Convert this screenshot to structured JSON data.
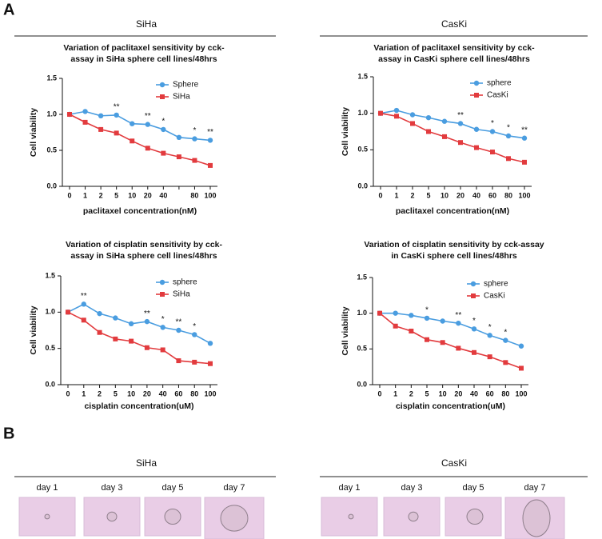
{
  "panels": {
    "a": {
      "label": "A",
      "groups": [
        "SiHa",
        "CasKi"
      ]
    },
    "b": {
      "label": "B",
      "groups": [
        "SiHa",
        "CasKi"
      ],
      "days": [
        "day 1",
        "day 3",
        "day 5",
        "day 7"
      ]
    }
  },
  "chart_data": [
    {
      "type": "line",
      "title_lines": [
        "Variation of paclitaxel sensitivity by cck-",
        "assay in SiHa sphere cell lines/48hrs"
      ],
      "xlabel": "paclitaxel concentration(nM)",
      "ylabel": "Cell viability",
      "categories": [
        "0",
        "1",
        "2",
        "5",
        "10",
        "20",
        "40",
        null,
        "80",
        "100"
      ],
      "series": [
        {
          "name": "Sphere",
          "color": "#4a9de0",
          "marker": "circle",
          "values": [
            1.0,
            1.04,
            0.98,
            0.99,
            0.87,
            0.86,
            0.79,
            0.68,
            0.66,
            0.64
          ]
        },
        {
          "name": "SiHa",
          "color": "#e23b3e",
          "marker": "square",
          "values": [
            1.0,
            0.89,
            0.79,
            0.74,
            0.63,
            0.53,
            0.46,
            0.41,
            0.36,
            0.29
          ]
        }
      ],
      "annotations": [
        {
          "text": "**",
          "x": "5"
        },
        {
          "text": "**",
          "x": "20"
        },
        {
          "text": "*",
          "x": "40"
        },
        {
          "text": "*",
          "x": "80"
        },
        {
          "text": "**",
          "x": "100"
        }
      ],
      "ylim": [
        0,
        1.5
      ],
      "yticks": [
        {
          "value": 0,
          "label": "0.0"
        },
        {
          "value": 0.5,
          "label": "0.5"
        },
        {
          "value": 1,
          "label": "1.0"
        },
        {
          "value": 1.5,
          "label": "1.5"
        }
      ],
      "legend": "upper right"
    },
    {
      "type": "line",
      "title_lines": [
        "Variation of paclitaxel sensitivity by cck-",
        "assay in CasKi sphere cell lines/48hrs"
      ],
      "xlabel": "paclitaxel concentration(nM)",
      "ylabel": "Cell viability",
      "categories": [
        "0",
        "1",
        "2",
        "5",
        "10",
        "20",
        "40",
        "60",
        "80",
        "100"
      ],
      "series": [
        {
          "name": "sphere",
          "color": "#4a9de0",
          "marker": "circle",
          "values": [
            1.0,
            1.04,
            0.98,
            0.94,
            0.89,
            0.86,
            0.78,
            0.75,
            0.69,
            0.66
          ]
        },
        {
          "name": "CasKi",
          "color": "#e23b3e",
          "marker": "square",
          "values": [
            1.0,
            0.96,
            0.86,
            0.75,
            0.68,
            0.6,
            0.53,
            0.47,
            0.38,
            0.33
          ]
        }
      ],
      "annotations": [
        {
          "text": "**",
          "x": "20"
        },
        {
          "text": "*",
          "x": "60"
        },
        {
          "text": "*",
          "x": "80"
        },
        {
          "text": "**",
          "x": "100"
        }
      ],
      "ylim": [
        0,
        1.5
      ],
      "yticks": [
        {
          "value": 0,
          "label": "0.0"
        },
        {
          "value": 0.5,
          "label": "0.5"
        },
        {
          "value": 1,
          "label": "1.0"
        },
        {
          "value": 1.5,
          "label": "1.5"
        }
      ],
      "legend": "upper right"
    },
    {
      "type": "line",
      "title_lines": [
        "Variation of cisplatin sensitivity by cck-",
        "assay in SiHa sphere cell lines/48hrs"
      ],
      "xlabel": "cisplatin concentration(uM)",
      "ylabel": "Cell viability",
      "categories": [
        "0",
        "1",
        "2",
        "5",
        "10",
        "20",
        "40",
        "60",
        "80",
        "100"
      ],
      "series": [
        {
          "name": "sphere",
          "color": "#4a9de0",
          "marker": "circle",
          "values": [
            1.0,
            1.11,
            0.98,
            0.92,
            0.84,
            0.87,
            0.79,
            0.75,
            0.69,
            0.57
          ]
        },
        {
          "name": "SiHa",
          "color": "#e23b3e",
          "marker": "square",
          "values": [
            1.0,
            0.89,
            0.72,
            0.63,
            0.6,
            0.51,
            0.48,
            0.33,
            0.31,
            0.29
          ]
        }
      ],
      "annotations": [
        {
          "text": "**",
          "x": "1"
        },
        {
          "text": "**",
          "x": "20"
        },
        {
          "text": "*",
          "x": "40"
        },
        {
          "text": "**",
          "x": "60"
        },
        {
          "text": "*",
          "x": "80"
        }
      ],
      "ylim": [
        0,
        1.5
      ],
      "yticks": [
        {
          "value": 0,
          "label": "0.0"
        },
        {
          "value": 0.5,
          "label": "0.5"
        },
        {
          "value": 1,
          "label": "1.0"
        },
        {
          "value": 1.5,
          "label": "1.5"
        }
      ],
      "legend": "upper right"
    },
    {
      "type": "line",
      "title_lines": [
        "Variation of cisplatin sensitivity by cck-assay",
        "in CasKi sphere cell lines/48hrs"
      ],
      "xlabel": "cisplatin concentration(uM)",
      "ylabel": "Cell viability",
      "categories": [
        "0",
        "1",
        "2",
        "5",
        "10",
        "20",
        "40",
        "60",
        "80",
        "100"
      ],
      "series": [
        {
          "name": "sphere",
          "color": "#4a9de0",
          "marker": "circle",
          "values": [
            1.0,
            1.0,
            0.97,
            0.93,
            0.89,
            0.86,
            0.78,
            0.69,
            0.62,
            0.54
          ]
        },
        {
          "name": "CasKi",
          "color": "#e23b3e",
          "marker": "square",
          "values": [
            1.0,
            0.82,
            0.75,
            0.63,
            0.59,
            0.51,
            0.45,
            0.39,
            0.31,
            0.23
          ]
        }
      ],
      "annotations": [
        {
          "text": "*",
          "x": "5"
        },
        {
          "text": "**",
          "x": "20"
        },
        {
          "text": "*",
          "x": "40"
        },
        {
          "text": "*",
          "x": "60"
        },
        {
          "text": "*",
          "x": "80"
        }
      ],
      "ylim": [
        0,
        1.5
      ],
      "yticks": [
        {
          "value": 0,
          "label": "0.0"
        },
        {
          "value": 0.5,
          "label": "0.5"
        },
        {
          "value": 1,
          "label": "1.0"
        },
        {
          "value": 1.5,
          "label": "1.5"
        }
      ],
      "legend": "upper right"
    }
  ]
}
